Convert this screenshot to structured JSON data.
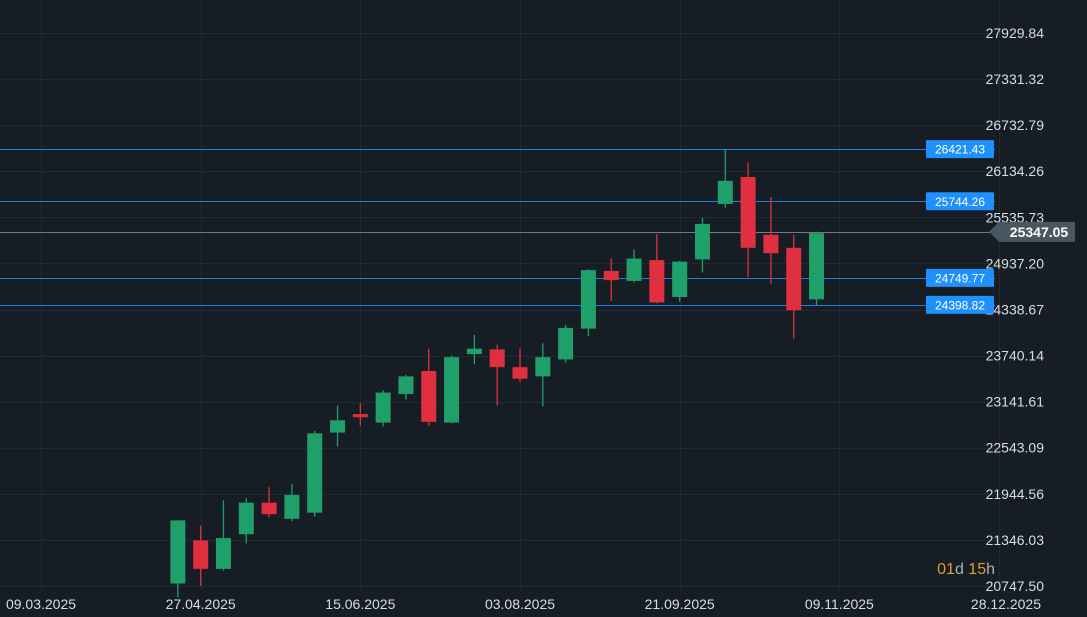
{
  "chart_data": {
    "type": "candlestick",
    "y_ticks": [
      "27929.84",
      "27331.32",
      "26732.79",
      "26134.26",
      "25535.73",
      "24937.20",
      "24338.67",
      "23740.14",
      "23141.61",
      "22543.09",
      "21944.56",
      "21346.03",
      "20747.50"
    ],
    "x_ticks": [
      "09.03.2025",
      "27.04.2025",
      "15.06.2025",
      "03.08.2025",
      "21.09.2025",
      "09.11.2025",
      "28.12.2025"
    ],
    "ylim": [
      20640,
      28200
    ],
    "x_start": "2025-03-09",
    "x_end": "2025-12-28",
    "candles": [
      {
        "date": "2025-04-20",
        "open": 20780,
        "high": 21600,
        "low": 20600,
        "close": 21600
      },
      {
        "date": "2025-04-27",
        "open": 21340,
        "high": 21530,
        "low": 20750,
        "close": 20970
      },
      {
        "date": "2025-05-04",
        "open": 20970,
        "high": 21860,
        "low": 20950,
        "close": 21370
      },
      {
        "date": "2025-05-11",
        "open": 21420,
        "high": 21890,
        "low": 21300,
        "close": 21830
      },
      {
        "date": "2025-05-18",
        "open": 21830,
        "high": 22030,
        "low": 21640,
        "close": 21680
      },
      {
        "date": "2025-05-25",
        "open": 21620,
        "high": 22070,
        "low": 21590,
        "close": 21930
      },
      {
        "date": "2025-06-01",
        "open": 21700,
        "high": 22760,
        "low": 21650,
        "close": 22730
      },
      {
        "date": "2025-06-08",
        "open": 22740,
        "high": 23090,
        "low": 22560,
        "close": 22900
      },
      {
        "date": "2025-06-15",
        "open": 22980,
        "high": 23120,
        "low": 22830,
        "close": 22940
      },
      {
        "date": "2025-06-22",
        "open": 22870,
        "high": 23290,
        "low": 22820,
        "close": 23260
      },
      {
        "date": "2025-06-29",
        "open": 23240,
        "high": 23490,
        "low": 23170,
        "close": 23470
      },
      {
        "date": "2025-07-06",
        "open": 23540,
        "high": 23830,
        "low": 22830,
        "close": 22880
      },
      {
        "date": "2025-07-13",
        "open": 22870,
        "high": 23740,
        "low": 22860,
        "close": 23720
      },
      {
        "date": "2025-07-20",
        "open": 23760,
        "high": 24010,
        "low": 23630,
        "close": 23830
      },
      {
        "date": "2025-07-27",
        "open": 23820,
        "high": 23880,
        "low": 23090,
        "close": 23590
      },
      {
        "date": "2025-08-03",
        "open": 23590,
        "high": 23830,
        "low": 23400,
        "close": 23440
      },
      {
        "date": "2025-08-10",
        "open": 23470,
        "high": 23900,
        "low": 23080,
        "close": 23720
      },
      {
        "date": "2025-08-17",
        "open": 23690,
        "high": 24140,
        "low": 23650,
        "close": 24100
      },
      {
        "date": "2025-08-24",
        "open": 24090,
        "high": 24860,
        "low": 23990,
        "close": 24850
      },
      {
        "date": "2025-08-31",
        "open": 24840,
        "high": 25000,
        "low": 24450,
        "close": 24720
      },
      {
        "date": "2025-09-07",
        "open": 24710,
        "high": 25120,
        "low": 24690,
        "close": 25000
      },
      {
        "date": "2025-09-14",
        "open": 24980,
        "high": 25320,
        "low": 24420,
        "close": 24430
      },
      {
        "date": "2025-09-21",
        "open": 24500,
        "high": 24970,
        "low": 24440,
        "close": 24960
      },
      {
        "date": "2025-09-28",
        "open": 24990,
        "high": 25530,
        "low": 24820,
        "close": 25450
      },
      {
        "date": "2025-10-05",
        "open": 25710,
        "high": 26420,
        "low": 25660,
        "close": 26010
      },
      {
        "date": "2025-10-12",
        "open": 26060,
        "high": 26250,
        "low": 24760,
        "close": 25140
      },
      {
        "date": "2025-10-19",
        "open": 25310,
        "high": 25800,
        "low": 24670,
        "close": 25070
      },
      {
        "date": "2025-10-26",
        "open": 25140,
        "high": 25310,
        "low": 23960,
        "close": 24330
      },
      {
        "date": "2025-11-02",
        "open": 24470,
        "high": 25350,
        "low": 24390,
        "close": 25330
      }
    ],
    "levels": [
      {
        "value": 26421.43,
        "label": "26421.43"
      },
      {
        "value": 25744.26,
        "label": "25744.26"
      },
      {
        "value": 24749.77,
        "label": "24749.77"
      },
      {
        "value": 24398.82,
        "label": "24398.82"
      }
    ],
    "current_price": {
      "value": 25347.05,
      "label": "25347.05"
    },
    "countdown": {
      "num1": "01",
      "unit1": "d",
      "num2": "15",
      "unit2": "h"
    },
    "colors": {
      "background": "#161d24",
      "grid": "#1f2a33",
      "up": "#1fa06a",
      "down": "#e0303f",
      "level_line": "#1e7ee8",
      "level_label_bg": "#1e90ff",
      "current_line": "#6f7c88",
      "current_label_bg": "#4a5661"
    }
  }
}
